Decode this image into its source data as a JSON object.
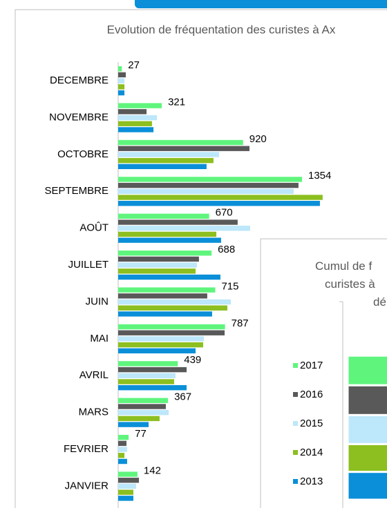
{
  "chart_data": [
    {
      "type": "hbar",
      "title": "Evolution de fréquentation des curistes à Ax",
      "categories": [
        "DECEMBRE",
        "NOVEMBRE",
        "OCTOBRE",
        "SEPTEMBRE",
        "AOÛT",
        "JUILLET",
        "JUIN",
        "MAI",
        "AVRIL",
        "MARS",
        "FEVRIER",
        "JANVIER"
      ],
      "xlim": [
        0,
        1980
      ],
      "series": [
        {
          "color": "#5ff57d",
          "data_labels": true,
          "values": [
            27,
            321,
            920,
            1354,
            670,
            688,
            715,
            787,
            439,
            367,
            77,
            142
          ]
        },
        {
          "color": "#595959",
          "values": [
            56,
            209,
            967,
            1328,
            880,
            595,
            656,
            784,
            504,
            351,
            61,
            153
          ]
        },
        {
          "color": "#bde7fa",
          "values": [
            46,
            285,
            743,
            1293,
            972,
            580,
            830,
            631,
            422,
            372,
            66,
            132
          ]
        },
        {
          "color": "#8cbf1f",
          "values": [
            46,
            249,
            702,
            1506,
            723,
            570,
            804,
            626,
            412,
            305,
            46,
            112
          ]
        },
        {
          "color": "#0a8fd8",
          "values": [
            46,
            260,
            651,
            1486,
            758,
            753,
            692,
            570,
            504,
            224,
            66,
            112
          ]
        }
      ]
    },
    {
      "type": "stacked_column",
      "title_lines": [
        "Cumul de f",
        "curistes à",
        "dé"
      ],
      "ylim": [
        0,
        43500
      ],
      "series": [
        {
          "name": "2017",
          "color": "#5ff57d",
          "values": [
            6507
          ]
        },
        {
          "name": "2016",
          "color": "#595959",
          "values": [
            6544
          ]
        },
        {
          "name": "2015",
          "color": "#bde7fa",
          "values": [
            6372
          ]
        },
        {
          "name": "2014",
          "color": "#8cbf1f",
          "values": [
            6101
          ]
        },
        {
          "name": "2013",
          "color": "#0a8fd8",
          "values": [
            6122
          ]
        }
      ]
    }
  ]
}
